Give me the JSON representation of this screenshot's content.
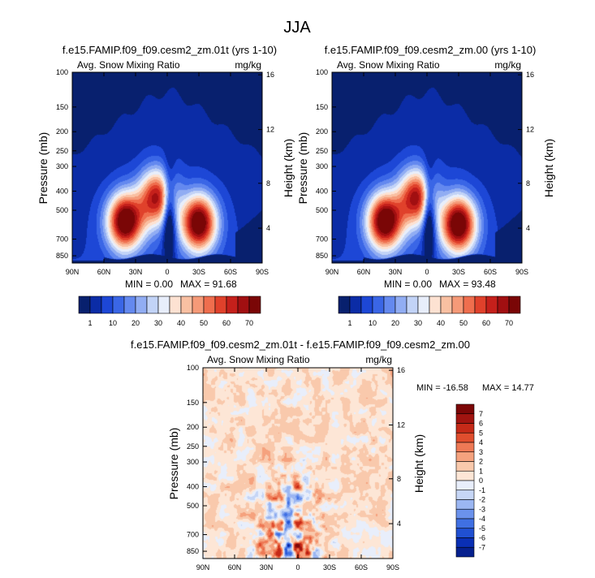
{
  "figure_title": "JJA",
  "palettes": {
    "abs": [
      "#08206e",
      "#0b2ca6",
      "#1d47d6",
      "#3a66e6",
      "#6489ef",
      "#91adf3",
      "#c2d3f7",
      "#e8eefb",
      "#fde2d2",
      "#f9c0a2",
      "#f59a78",
      "#ef6e4e",
      "#e0412b",
      "#c5201b",
      "#a10f11",
      "#7a0606"
    ],
    "diff": [
      "#06208e",
      "#0a2fb4",
      "#2050d2",
      "#4070e3",
      "#6b92ec",
      "#9bb6f2",
      "#c6d6f6",
      "#e8eefb",
      "#fde6d6",
      "#f9c9ac",
      "#f5a27e",
      "#ee7955",
      "#e04e2e",
      "#c52a18",
      "#a11410",
      "#7c0707"
    ]
  },
  "chart_data": [
    {
      "type": "heatmap",
      "title": "f.e15.FAMIP.f09_f09.cesm2_zm.01t (yrs 1-10)",
      "subtitle_left": "Avg. Snow Mixing Ratio",
      "subtitle_right": "mg/kg",
      "xlabel": "",
      "ylabel": "Pressure (mb)",
      "ylabel_right": "Height (km)",
      "xticks": [
        "90N",
        "60N",
        "30N",
        "0",
        "30S",
        "60S",
        "90S"
      ],
      "yticks": [
        "100",
        "150",
        "200",
        "250",
        "300",
        "400",
        "500",
        "700",
        "850"
      ],
      "yticks_right": [
        "16",
        "12",
        "8",
        "4"
      ],
      "xlim": [
        90,
        -90
      ],
      "ylim": [
        100,
        925
      ],
      "min_text": "MIN =   0.00",
      "max_text": "MAX =  91.68",
      "levels": [
        "1",
        "10",
        "20",
        "30",
        "40",
        "50",
        "60",
        "70"
      ],
      "features": [
        {
          "lat": 40,
          "p": 570,
          "amp": 1.0
        },
        {
          "lat": 10,
          "p": 430,
          "amp": 0.78
        },
        {
          "lat": -30,
          "p": 580,
          "amp": 0.98
        }
      ]
    },
    {
      "type": "heatmap",
      "title": "f.e15.FAMIP.f09_f09.cesm2_zm.00 (yrs 1-10)",
      "subtitle_left": "Avg. Snow Mixing Ratio",
      "subtitle_right": "mg/kg",
      "xlabel": "",
      "ylabel": "Pressure (mb)",
      "ylabel_right": "Height (km)",
      "xticks": [
        "90N",
        "60N",
        "30N",
        "0",
        "30S",
        "60S",
        "90S"
      ],
      "yticks": [
        "100",
        "150",
        "200",
        "250",
        "300",
        "400",
        "500",
        "700",
        "850"
      ],
      "yticks_right": [
        "16",
        "12",
        "8",
        "4"
      ],
      "xlim": [
        90,
        -90
      ],
      "ylim": [
        100,
        925
      ],
      "min_text": "MIN =   0.00",
      "max_text": "MAX =  93.48",
      "levels": [
        "1",
        "10",
        "20",
        "30",
        "40",
        "50",
        "60",
        "70"
      ],
      "features": [
        {
          "lat": 40,
          "p": 570,
          "amp": 1.0
        },
        {
          "lat": 10,
          "p": 430,
          "amp": 0.8
        },
        {
          "lat": -30,
          "p": 590,
          "amp": 1.0
        }
      ]
    },
    {
      "type": "heatmap",
      "title": "f.e15.FAMIP.f09_f09.cesm2_zm.01t - f.e15.FAMIP.f09_f09.cesm2_zm.00",
      "subtitle_left": "Avg. Snow Mixing Ratio",
      "subtitle_right": "mg/kg",
      "xlabel": "",
      "ylabel": "Pressure (mb)",
      "ylabel_right": "Height (km)",
      "xticks": [
        "90N",
        "60N",
        "30N",
        "0",
        "30S",
        "60S",
        "90S"
      ],
      "yticks": [
        "100",
        "150",
        "200",
        "250",
        "300",
        "400",
        "500",
        "700",
        "850"
      ],
      "yticks_right": [
        "16",
        "12",
        "8",
        "4"
      ],
      "xlim": [
        90,
        -90
      ],
      "ylim": [
        100,
        925
      ],
      "min_text": "MIN = -16.58",
      "max_text": "MAX =  14.77",
      "levels": [
        "7",
        "6",
        "5",
        "4",
        "3",
        "2",
        "1",
        "0",
        "-1",
        "-2",
        "-3",
        "-4",
        "-5",
        "-6",
        "-7"
      ]
    }
  ]
}
